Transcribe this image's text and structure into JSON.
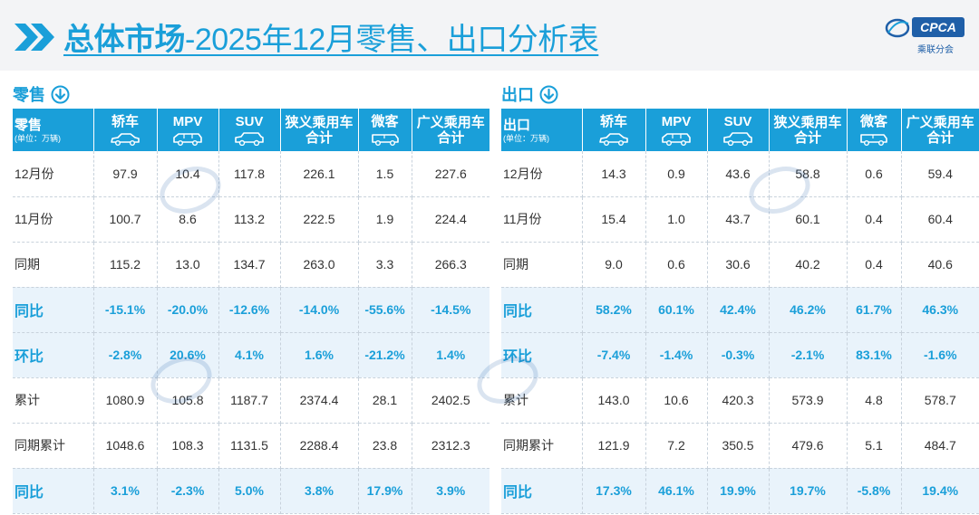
{
  "header": {
    "title_strong": "总体市场",
    "title_rest": "-2025年12月零售、出口分析表",
    "logo_text": "CPCA",
    "logo_sub": "乘联分会"
  },
  "colors": {
    "accent": "#1a9fd9",
    "highlight_row": "#e9f3fb"
  },
  "retail": {
    "section_label": "零售",
    "corner_title": "零售",
    "corner_unit": "(单位：万辆)",
    "columns": [
      "轿车",
      "MPV",
      "SUV",
      "狭义乘用车合计",
      "微客",
      "广义乘用车合计"
    ],
    "column_lines": [
      [
        "轿车"
      ],
      [
        "MPV"
      ],
      [
        "SUV"
      ],
      [
        "狭义乘用车",
        "合计"
      ],
      [
        "微客"
      ],
      [
        "广义乘用车",
        "合计"
      ]
    ],
    "rows": [
      {
        "label": "12月份",
        "values": [
          "97.9",
          "10.4",
          "117.8",
          "226.1",
          "1.5",
          "227.6"
        ],
        "highlight": false
      },
      {
        "label": "11月份",
        "values": [
          "100.7",
          "8.6",
          "113.2",
          "222.5",
          "1.9",
          "224.4"
        ],
        "highlight": false
      },
      {
        "label": "同期",
        "values": [
          "115.2",
          "13.0",
          "134.7",
          "263.0",
          "3.3",
          "266.3"
        ],
        "highlight": false
      },
      {
        "label": "同比",
        "values": [
          "-15.1%",
          "-20.0%",
          "-12.6%",
          "-14.0%",
          "-55.6%",
          "-14.5%"
        ],
        "highlight": true
      },
      {
        "label": "环比",
        "values": [
          "-2.8%",
          "20.6%",
          "4.1%",
          "1.6%",
          "-21.2%",
          "1.4%"
        ],
        "highlight": true
      },
      {
        "label": "累计",
        "values": [
          "1080.9",
          "105.8",
          "1187.7",
          "2374.4",
          "28.1",
          "2402.5"
        ],
        "highlight": false
      },
      {
        "label": "同期累计",
        "values": [
          "1048.6",
          "108.3",
          "1131.5",
          "2288.4",
          "23.8",
          "2312.3"
        ],
        "highlight": false
      },
      {
        "label": "同比",
        "values": [
          "3.1%",
          "-2.3%",
          "5.0%",
          "3.8%",
          "17.9%",
          "3.9%"
        ],
        "highlight": true
      }
    ]
  },
  "export": {
    "section_label": "出口",
    "corner_title": "出口",
    "corner_unit": "(单位：万辆)",
    "columns": [
      "轿车",
      "MPV",
      "SUV",
      "狭义乘用车合计",
      "微客",
      "广义乘用车合计"
    ],
    "column_lines": [
      [
        "轿车"
      ],
      [
        "MPV"
      ],
      [
        "SUV"
      ],
      [
        "狭义乘用车",
        "合计"
      ],
      [
        "微客"
      ],
      [
        "广义乘用车",
        "合计"
      ]
    ],
    "rows": [
      {
        "label": "12月份",
        "values": [
          "14.3",
          "0.9",
          "43.6",
          "58.8",
          "0.6",
          "59.4"
        ],
        "highlight": false
      },
      {
        "label": "11月份",
        "values": [
          "15.4",
          "1.0",
          "43.7",
          "60.1",
          "0.4",
          "60.4"
        ],
        "highlight": false
      },
      {
        "label": "同期",
        "values": [
          "9.0",
          "0.6",
          "30.6",
          "40.2",
          "0.4",
          "40.6"
        ],
        "highlight": false
      },
      {
        "label": "同比",
        "values": [
          "58.2%",
          "60.1%",
          "42.4%",
          "46.2%",
          "61.7%",
          "46.3%"
        ],
        "highlight": true
      },
      {
        "label": "环比",
        "values": [
          "-7.4%",
          "-1.4%",
          "-0.3%",
          "-2.1%",
          "83.1%",
          "-1.6%"
        ],
        "highlight": true
      },
      {
        "label": "累计",
        "values": [
          "143.0",
          "10.6",
          "420.3",
          "573.9",
          "4.8",
          "578.7"
        ],
        "highlight": false
      },
      {
        "label": "同期累计",
        "values": [
          "121.9",
          "7.2",
          "350.5",
          "479.6",
          "5.1",
          "484.7"
        ],
        "highlight": false
      },
      {
        "label": "同比",
        "values": [
          "17.3%",
          "46.1%",
          "19.9%",
          "19.7%",
          "-5.8%",
          "19.4%"
        ],
        "highlight": true
      }
    ]
  }
}
